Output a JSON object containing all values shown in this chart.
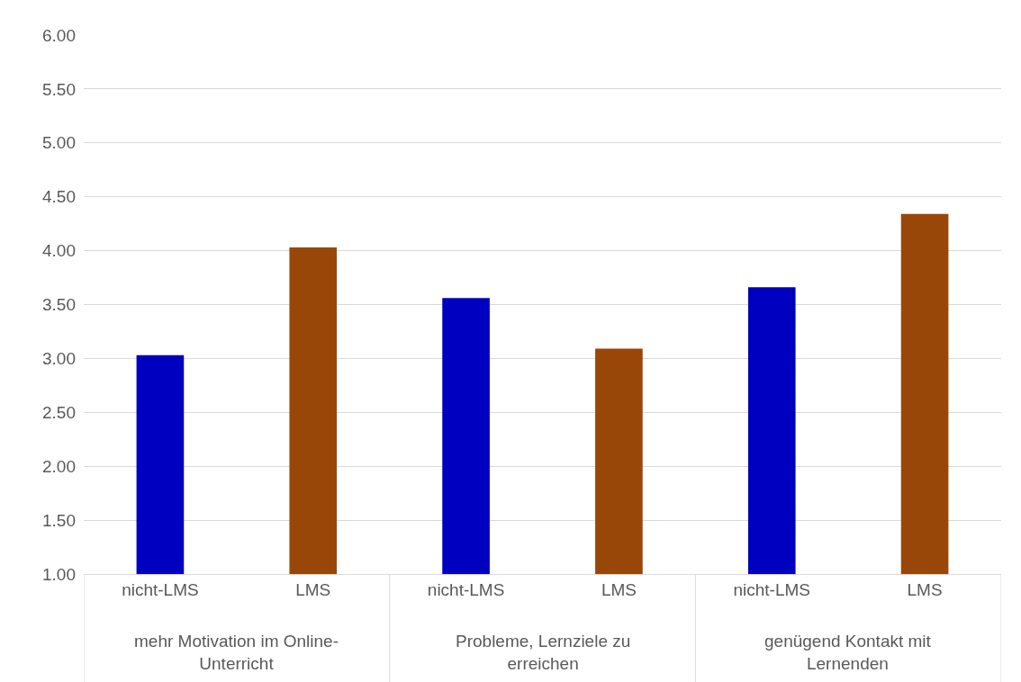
{
  "chart_data": {
    "type": "bar",
    "categories": [
      "nicht-LMS",
      "LMS",
      "nicht-LMS",
      "LMS",
      "nicht-LMS",
      "LMS"
    ],
    "values": [
      3.03,
      4.03,
      3.56,
      3.09,
      3.66,
      4.34
    ],
    "colors": [
      "#0000c0",
      "#994708",
      "#0000c0",
      "#994708",
      "#0000c0",
      "#994708"
    ],
    "ylim": [
      1,
      6
    ],
    "yticks": [
      {
        "value": 1,
        "label": "1.00"
      },
      {
        "value": 1.5,
        "label": "1.50"
      },
      {
        "value": 2,
        "label": "2.00"
      },
      {
        "value": 2.5,
        "label": "2.50"
      },
      {
        "value": 3,
        "label": "3.00"
      },
      {
        "value": 3.5,
        "label": "3.50"
      },
      {
        "value": 4,
        "label": "4.00"
      },
      {
        "value": 4.5,
        "label": "4.50"
      },
      {
        "value": 5,
        "label": "5.00"
      },
      {
        "value": 5.5,
        "label": "5.50"
      },
      {
        "value": 6,
        "label": "6.00"
      }
    ],
    "grid": "y",
    "annotations": [
      "mehr Motivation im Online-Unterricht",
      "Probleme, Lernziele zu erreichen",
      "genügend Kontakt mit Lernenden"
    ]
  }
}
